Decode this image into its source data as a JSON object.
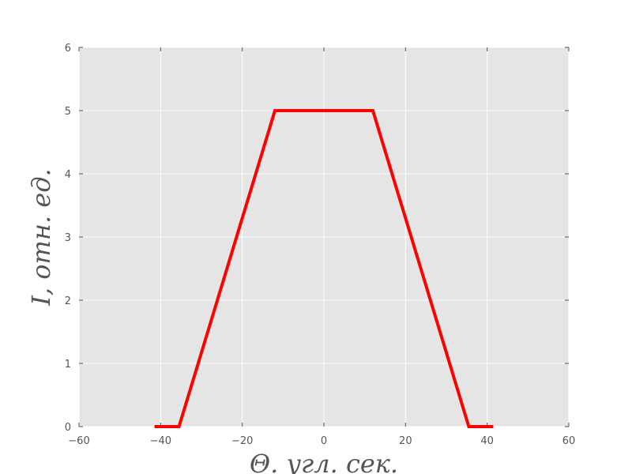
{
  "chart_data": {
    "type": "line",
    "title": "",
    "xlabel": "Θ. угл. сек.",
    "ylabel": "I, отн. ед.",
    "xlim": [
      -60,
      60
    ],
    "ylim": [
      0,
      6
    ],
    "xticks": [
      -60,
      -40,
      -20,
      0,
      20,
      40,
      60
    ],
    "yticks": [
      0,
      1,
      2,
      3,
      4,
      5,
      6
    ],
    "xtick_labels": [
      "−60",
      "−40",
      "−20",
      "0",
      "20",
      "40",
      "60"
    ],
    "ytick_labels": [
      "0",
      "1",
      "2",
      "3",
      "4",
      "5",
      "6"
    ],
    "grid": true,
    "legend": "none",
    "series": [
      {
        "color": "#ff0000",
        "x": [
          -41.5,
          -35.5,
          -12,
          12,
          35.5,
          41.5
        ],
        "y": [
          0,
          0,
          5,
          5,
          0,
          0
        ]
      }
    ]
  },
  "colors": {
    "plot_background": "#e5e5e5",
    "grid": "#ffffff",
    "line": "#ff0000",
    "text": "#555555"
  }
}
